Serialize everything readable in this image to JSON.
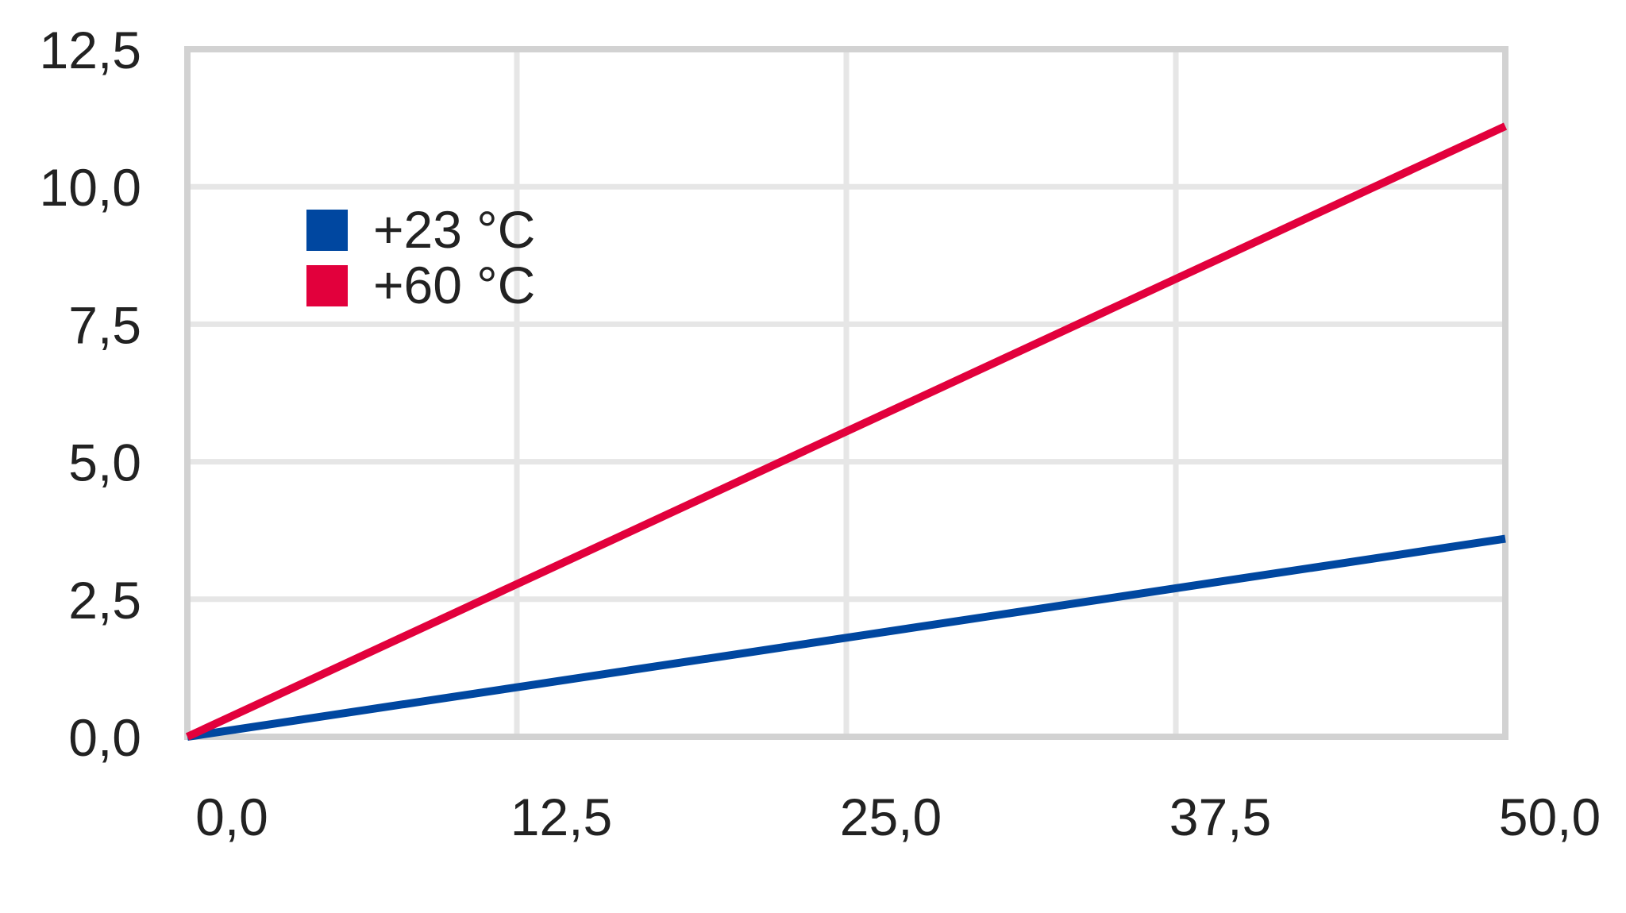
{
  "chart_data": {
    "type": "line",
    "title": "",
    "xlabel": "",
    "ylabel": "",
    "xlim": [
      0,
      50
    ],
    "ylim": [
      0,
      12.5
    ],
    "x_ticks": [
      0,
      12.5,
      25,
      37.5,
      50
    ],
    "y_ticks": [
      0,
      2.5,
      5,
      7.5,
      10,
      12.5
    ],
    "x_tick_labels": [
      "0,0",
      "12,5",
      "25,0",
      "37,5",
      "50,0"
    ],
    "y_tick_labels": [
      "0,0",
      "2,5",
      "5,0",
      "7,5",
      "10,0",
      "12,5"
    ],
    "grid": true,
    "legend_position": "top-left",
    "series": [
      {
        "name": "+23 °C",
        "color": "#0047a0",
        "x": [
          0,
          50
        ],
        "y": [
          0,
          3.6
        ]
      },
      {
        "name": "+60 °C",
        "color": "#e2003c",
        "x": [
          0,
          50
        ],
        "y": [
          0,
          11.1
        ]
      }
    ]
  }
}
